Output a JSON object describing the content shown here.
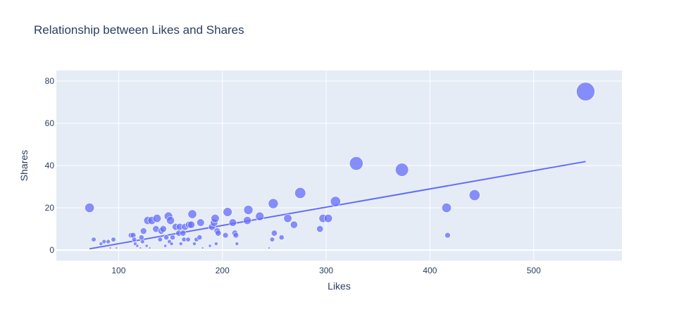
{
  "chart_data": {
    "type": "scatter",
    "title": "Relationship between Likes and Shares",
    "xlabel": "Likes",
    "ylabel": "Shares",
    "xlim": [
      40,
      585
    ],
    "ylim": [
      -5,
      85
    ],
    "xticks": [
      100,
      200,
      300,
      400,
      500
    ],
    "yticks": [
      0,
      20,
      40,
      60,
      80
    ],
    "grid": true,
    "legend": "none",
    "colors": {
      "marker": "#636efa",
      "trendline": "#636efa",
      "plot_background": "#e5ecf6",
      "grid": "#ffffff",
      "text": "#2a3f5f"
    },
    "marker_size_encodes": "Shares",
    "points": [
      {
        "x": 72,
        "y": 20
      },
      {
        "x": 76,
        "y": 5
      },
      {
        "x": 83,
        "y": 3
      },
      {
        "x": 86,
        "y": 4
      },
      {
        "x": 90,
        "y": 4
      },
      {
        "x": 92,
        "y": 1
      },
      {
        "x": 95,
        "y": 5
      },
      {
        "x": 98,
        "y": 1
      },
      {
        "x": 112,
        "y": 7
      },
      {
        "x": 114,
        "y": 7
      },
      {
        "x": 115,
        "y": 5
      },
      {
        "x": 116,
        "y": 3
      },
      {
        "x": 118,
        "y": 2
      },
      {
        "x": 121,
        "y": 1
      },
      {
        "x": 122,
        "y": 6
      },
      {
        "x": 123,
        "y": 4
      },
      {
        "x": 124,
        "y": 9
      },
      {
        "x": 127,
        "y": 2
      },
      {
        "x": 128,
        "y": 14
      },
      {
        "x": 130,
        "y": 1
      },
      {
        "x": 132,
        "y": 14
      },
      {
        "x": 136,
        "y": 10
      },
      {
        "x": 137,
        "y": 15
      },
      {
        "x": 140,
        "y": 5
      },
      {
        "x": 141,
        "y": 9
      },
      {
        "x": 143,
        "y": 10
      },
      {
        "x": 145,
        "y": 2
      },
      {
        "x": 146,
        "y": 6
      },
      {
        "x": 148,
        "y": 16
      },
      {
        "x": 149,
        "y": 4
      },
      {
        "x": 150,
        "y": 14
      },
      {
        "x": 151,
        "y": 3
      },
      {
        "x": 152,
        "y": 6
      },
      {
        "x": 155,
        "y": 11
      },
      {
        "x": 158,
        "y": 8
      },
      {
        "x": 159,
        "y": 11
      },
      {
        "x": 160,
        "y": 3
      },
      {
        "x": 162,
        "y": 8
      },
      {
        "x": 163,
        "y": 5
      },
      {
        "x": 164,
        "y": 11
      },
      {
        "x": 167,
        "y": 5
      },
      {
        "x": 168,
        "y": 12
      },
      {
        "x": 170,
        "y": 12
      },
      {
        "x": 171,
        "y": 17
      },
      {
        "x": 173,
        "y": 3
      },
      {
        "x": 175,
        "y": 5
      },
      {
        "x": 178,
        "y": 6
      },
      {
        "x": 179,
        "y": 13
      },
      {
        "x": 181,
        "y": 1
      },
      {
        "x": 188,
        "y": 2
      },
      {
        "x": 190,
        "y": 11
      },
      {
        "x": 192,
        "y": 13
      },
      {
        "x": 193,
        "y": 15
      },
      {
        "x": 194,
        "y": 3
      },
      {
        "x": 195,
        "y": 9
      },
      {
        "x": 196,
        "y": 8
      },
      {
        "x": 203,
        "y": 7
      },
      {
        "x": 205,
        "y": 18
      },
      {
        "x": 210,
        "y": 13
      },
      {
        "x": 212,
        "y": 8
      },
      {
        "x": 213,
        "y": 7
      },
      {
        "x": 214,
        "y": 3
      },
      {
        "x": 224,
        "y": 14
      },
      {
        "x": 225,
        "y": 19
      },
      {
        "x": 236,
        "y": 16
      },
      {
        "x": 245,
        "y": 1
      },
      {
        "x": 248,
        "y": 5
      },
      {
        "x": 249,
        "y": 22
      },
      {
        "x": 250,
        "y": 8
      },
      {
        "x": 257,
        "y": 6
      },
      {
        "x": 263,
        "y": 15
      },
      {
        "x": 269,
        "y": 12
      },
      {
        "x": 275,
        "y": 27
      },
      {
        "x": 294,
        "y": 10
      },
      {
        "x": 297,
        "y": 15
      },
      {
        "x": 302,
        "y": 15
      },
      {
        "x": 309,
        "y": 23
      },
      {
        "x": 329,
        "y": 41
      },
      {
        "x": 373,
        "y": 38
      },
      {
        "x": 416,
        "y": 20
      },
      {
        "x": 417,
        "y": 7
      },
      {
        "x": 443,
        "y": 26
      },
      {
        "x": 550,
        "y": 75
      }
    ],
    "trendline": {
      "x": [
        72,
        550
      ],
      "y": [
        0.6,
        41.9
      ]
    }
  }
}
